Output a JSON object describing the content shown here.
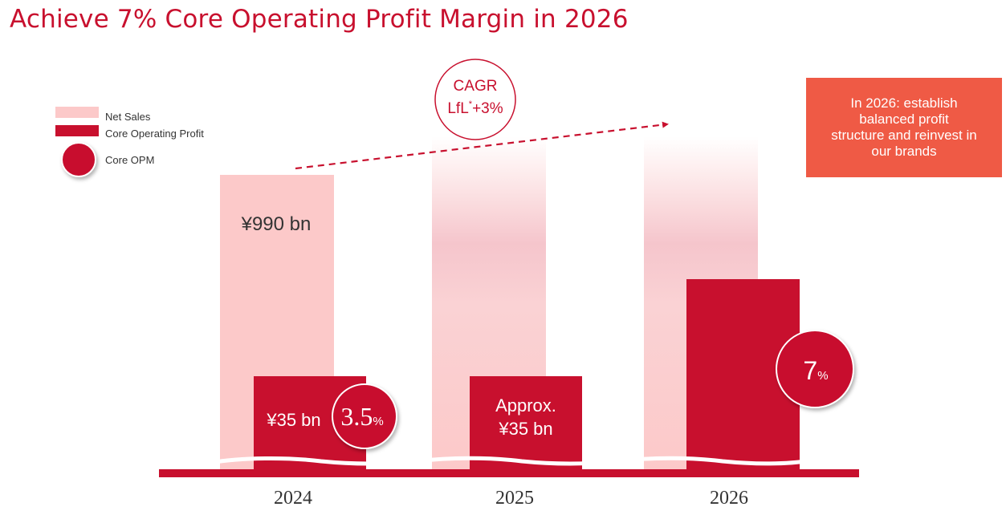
{
  "title": "Achieve 7% Core Operating Profit Margin in 2026",
  "legend": {
    "net_sales": "Net Sales",
    "core_operating_profit": "Core Operating Profit",
    "core_opm": "Core OPM"
  },
  "cagr": {
    "line1": "CAGR",
    "line2_main": "LfL",
    "line2_sup": "*",
    "line2_value": "+3%"
  },
  "callout": {
    "lines": [
      "In 2026: establish",
      "balanced profit",
      "structure and reinvest in",
      "our brands"
    ]
  },
  "colors": {
    "brand_red": "#c8102e",
    "net_sales_pink": "#fcc9c9",
    "callout_orange": "#ef5a45",
    "text_gray": "#333333"
  },
  "chart_data": {
    "type": "bar",
    "categories": [
      "2024",
      "2025",
      "2026"
    ],
    "series": [
      {
        "name": "Net Sales",
        "values": [
          990,
          null,
          null
        ],
        "labels": [
          "¥990 bn",
          "",
          ""
        ]
      },
      {
        "name": "Core Operating Profit",
        "values": [
          35,
          35,
          null
        ],
        "labels": [
          "¥35 bn",
          "Approx. ¥35 bn",
          ""
        ]
      },
      {
        "name": "Core OPM",
        "values": [
          3.5,
          null,
          7
        ],
        "labels": [
          "3.5",
          "",
          "7"
        ],
        "unit": "%"
      }
    ],
    "labels": {
      "2024_op": "¥35 bn",
      "2025_op_line1": "Approx.",
      "2025_op_line2": "¥35 bn",
      "2024_ns": "¥990 bn",
      "opm_2024": "3.5",
      "opm_2026": "7",
      "opm_unit": "%"
    },
    "annotation": "CAGR LfL* +3%",
    "legend_position": "top-left",
    "grid": false
  }
}
